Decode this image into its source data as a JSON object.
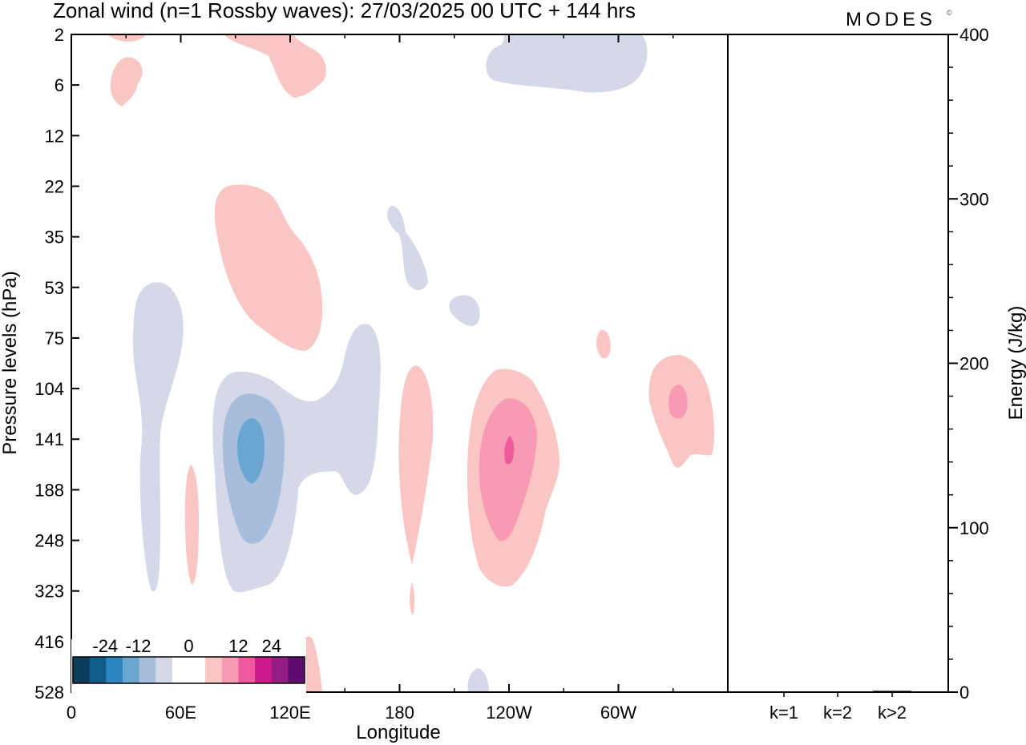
{
  "title": "Zonal wind (n=1 Rossby waves):  27/03/2025  00 UTC  + 144 hrs",
  "brand": "MODES",
  "brand_mark": "©",
  "chart_data": [
    {
      "type": "heatmap",
      "xlabel": "Longitude",
      "ylabel": "Pressure levels (hPa)",
      "x_ticks": [
        {
          "lon": 0,
          "label": "0"
        },
        {
          "lon": 60,
          "label": "60E"
        },
        {
          "lon": 120,
          "label": "120E"
        },
        {
          "lon": 180,
          "label": "180"
        },
        {
          "lon": 240,
          "label": "120W"
        },
        {
          "lon": 300,
          "label": "60W"
        }
      ],
      "xlim": [
        0,
        360
      ],
      "y_levels": [
        "2",
        "6",
        "12",
        "22",
        "35",
        "53",
        "75",
        "104",
        "141",
        "188",
        "248",
        "323",
        "416",
        "528"
      ],
      "colorbar": {
        "labels": [
          "-24",
          "-12",
          "0",
          "12",
          "24"
        ],
        "colors": [
          "#0d3c5a",
          "#0e5b8c",
          "#2a85c0",
          "#6aa6d0",
          "#a6bedc",
          "#d5d8e8",
          "#ffffff",
          "#ffffff",
          "#f9c6c4",
          "#f89ab3",
          "#ef5a9c",
          "#cc1a8a",
          "#951c82",
          "#5e0c6e"
        ]
      },
      "contours": [
        {
          "value": -3,
          "color": "#d5d8e8",
          "lon": 37,
          "level": "248"
        },
        {
          "value": -3,
          "color": "#d5d8e8",
          "lon": 120,
          "level": "141"
        },
        {
          "value": -3,
          "color": "#d5d8e8",
          "lon": 245,
          "level": "2"
        },
        {
          "value": -3,
          "color": "#d5d8e8",
          "lon": 184,
          "level": "35"
        },
        {
          "value": -3,
          "color": "#d5d8e8",
          "lon": 215,
          "level": "75"
        },
        {
          "value": -3,
          "color": "#d5d8e8",
          "lon": 225,
          "level": "528"
        },
        {
          "value": -6,
          "color": "#a6bedc",
          "lon": 103,
          "level": "188"
        },
        {
          "value": -9,
          "color": "#6aa6d0",
          "lon": 100,
          "level": "141"
        },
        {
          "value": 3,
          "color": "#f9c6c4",
          "lon": 20,
          "level": "2"
        },
        {
          "value": 3,
          "color": "#f9c6c4",
          "lon": 25,
          "level": "6"
        },
        {
          "value": 3,
          "color": "#f9c6c4",
          "lon": 112,
          "level": "6"
        },
        {
          "value": 3,
          "color": "#f9c6c4",
          "lon": 100,
          "level": "53"
        },
        {
          "value": 3,
          "color": "#f9c6c4",
          "lon": 66,
          "level": "248"
        },
        {
          "value": 3,
          "color": "#f9c6c4",
          "lon": 190,
          "level": "188"
        },
        {
          "value": 3,
          "color": "#f9c6c4",
          "lon": 240,
          "level": "188"
        },
        {
          "value": 3,
          "color": "#f9c6c4",
          "lon": 290,
          "level": "75"
        },
        {
          "value": 3,
          "color": "#f9c6c4",
          "lon": 335,
          "level": "141"
        },
        {
          "value": 3,
          "color": "#f9c6c4",
          "lon": 127,
          "level": "528"
        },
        {
          "value": 6,
          "color": "#f89ab3",
          "lon": 238,
          "level": "188"
        },
        {
          "value": 6,
          "color": "#f89ab3",
          "lon": 333,
          "level": "104"
        },
        {
          "value": 9,
          "color": "#ef5a9c",
          "lon": 240,
          "level": "141"
        }
      ]
    },
    {
      "type": "bar",
      "ylabel": "Energy (J/kg)",
      "ylim": [
        0,
        400
      ],
      "yticks": [
        0,
        100,
        200,
        300,
        400
      ],
      "categories": [
        "k=1",
        "k=2",
        "k>2"
      ],
      "values": [
        0.3,
        0.3,
        0.8
      ]
    }
  ]
}
